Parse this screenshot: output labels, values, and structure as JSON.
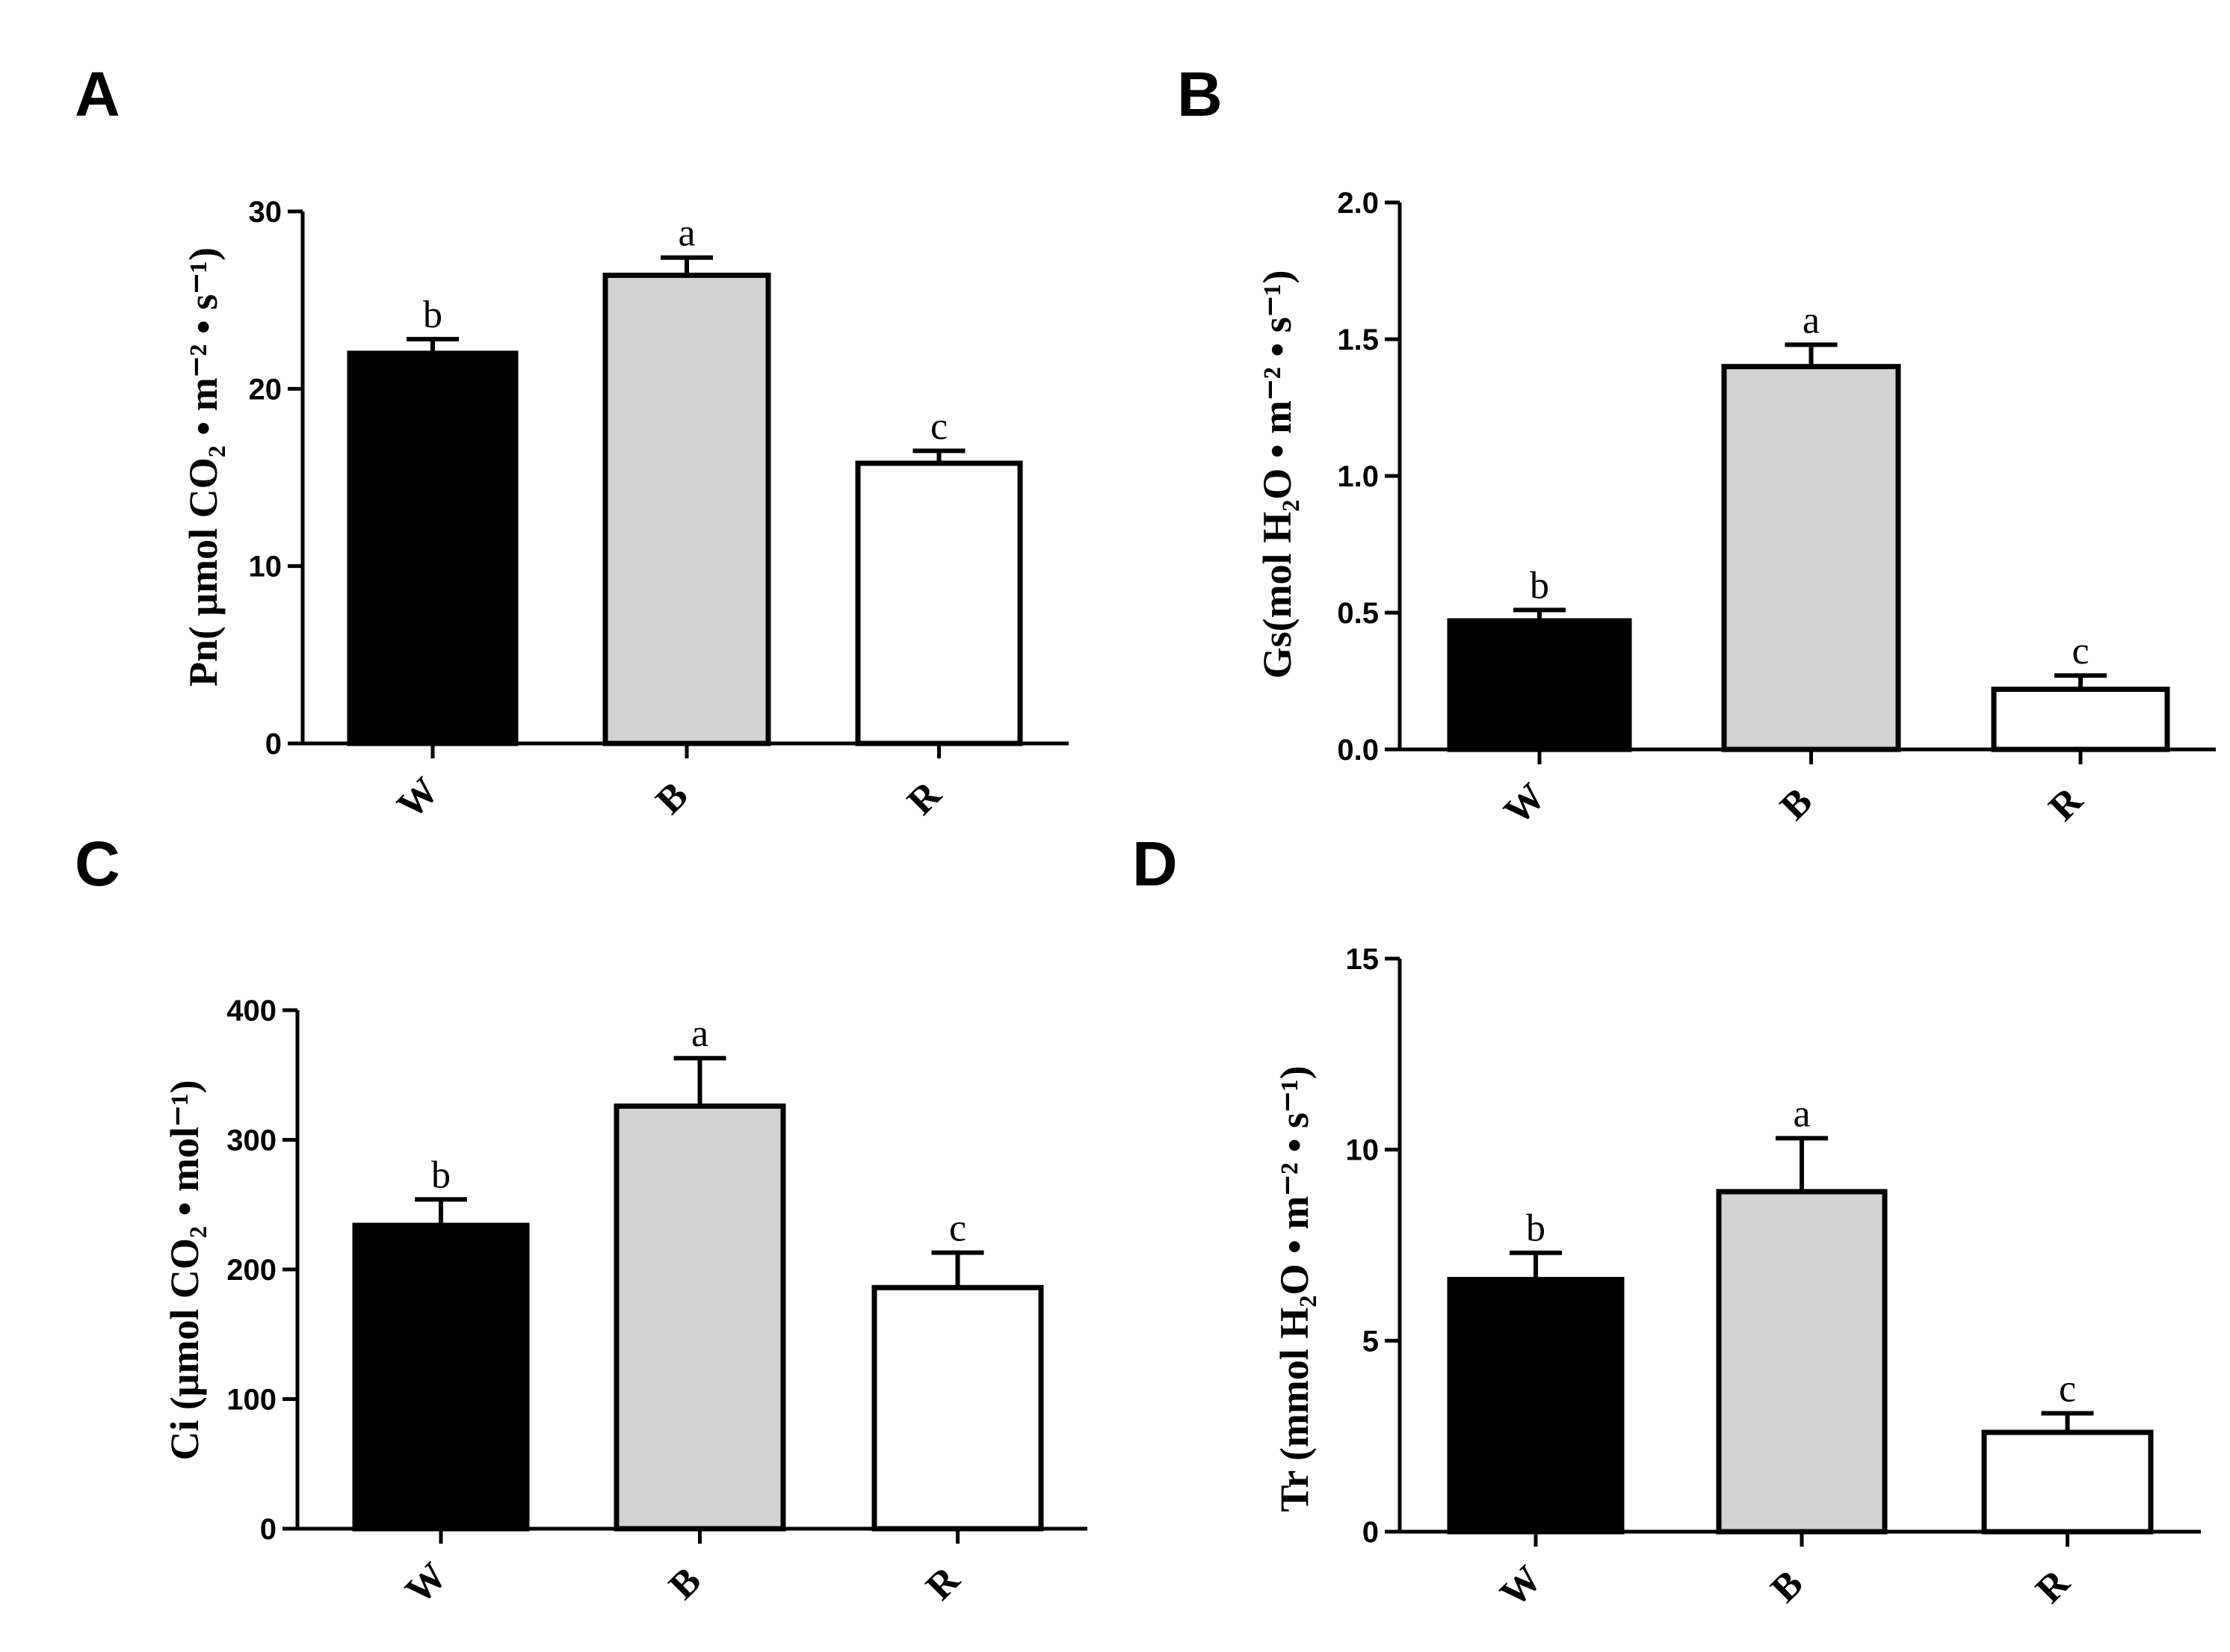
{
  "figure": {
    "panels": [
      "A",
      "B",
      "C",
      "D"
    ]
  },
  "chart_data": [
    {
      "panel": "A",
      "type": "bar",
      "categories": [
        "W",
        "B",
        "R"
      ],
      "values": [
        22.0,
        26.4,
        15.8
      ],
      "errors": [
        0.8,
        1.0,
        0.7
      ],
      "significance": [
        "b",
        "a",
        "c"
      ],
      "colors": [
        "#000000",
        "#d3d3d3",
        "#ffffff"
      ],
      "ylabel": "Pn( μmol CO₂ • m⁻² • s⁻¹)",
      "ylim": [
        0,
        30
      ],
      "yticks": [
        "0",
        "10",
        "20",
        "30"
      ],
      "ytick_values": [
        0,
        10,
        20,
        30
      ]
    },
    {
      "panel": "B",
      "type": "bar",
      "categories": [
        "W",
        "B",
        "R"
      ],
      "values": [
        0.47,
        1.4,
        0.22
      ],
      "errors": [
        0.04,
        0.08,
        0.05
      ],
      "significance": [
        "b",
        "a",
        "c"
      ],
      "colors": [
        "#000000",
        "#d3d3d3",
        "#ffffff"
      ],
      "ylabel": "Gs(mol H₂O • m⁻² • s⁻¹)",
      "ylim": [
        0,
        2.0
      ],
      "yticks": [
        "0.0",
        "0.5",
        "1.0",
        "1.5",
        "2.0"
      ],
      "ytick_values": [
        0,
        0.5,
        1.0,
        1.5,
        2.0
      ]
    },
    {
      "panel": "C",
      "type": "bar",
      "categories": [
        "W",
        "B",
        "R"
      ],
      "values": [
        234,
        326,
        186
      ],
      "errors": [
        20,
        37,
        27
      ],
      "significance": [
        "b",
        "a",
        "c"
      ],
      "colors": [
        "#000000",
        "#d3d3d3",
        "#ffffff"
      ],
      "ylabel": "Ci (μmol CO₂ • mol⁻¹)",
      "ylim": [
        0,
        400
      ],
      "yticks": [
        "0",
        "100",
        "200",
        "300",
        "400"
      ],
      "ytick_values": [
        0,
        100,
        200,
        300,
        400
      ]
    },
    {
      "panel": "D",
      "type": "bar",
      "categories": [
        "W",
        "B",
        "R"
      ],
      "values": [
        6.6,
        8.9,
        2.6
      ],
      "errors": [
        0.7,
        1.4,
        0.5
      ],
      "significance": [
        "b",
        "a",
        "c"
      ],
      "colors": [
        "#000000",
        "#d3d3d3",
        "#ffffff"
      ],
      "ylabel": "Tr (mmol H₂O • m⁻² • s⁻¹)",
      "ylim": [
        0,
        15
      ],
      "yticks": [
        "0",
        "5",
        "10",
        "15"
      ],
      "ytick_values": [
        0,
        5,
        10,
        15
      ]
    }
  ]
}
